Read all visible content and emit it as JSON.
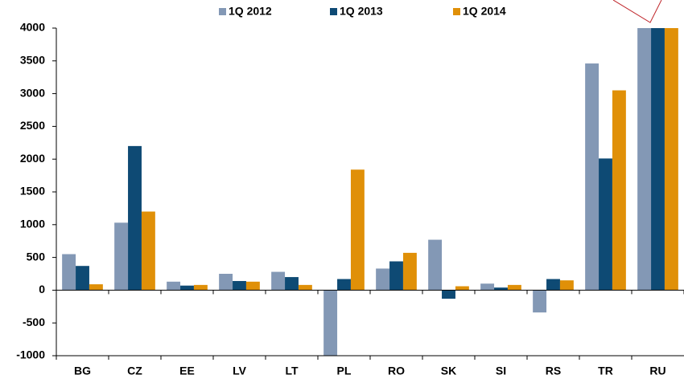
{
  "chart_data": {
    "type": "bar",
    "categories": [
      "BG",
      "CZ",
      "EE",
      "LV",
      "LT",
      "PL",
      "RO",
      "SK",
      "SI",
      "RS",
      "TR",
      "RU"
    ],
    "series": [
      {
        "name": "1Q 2012",
        "color": "#8398b5",
        "values": [
          550,
          1030,
          130,
          250,
          280,
          -1000,
          330,
          770,
          100,
          -340,
          3460,
          4000
        ]
      },
      {
        "name": "1Q 2013",
        "color": "#0e4a74",
        "values": [
          370,
          2200,
          70,
          140,
          200,
          170,
          440,
          -130,
          40,
          170,
          2010,
          4000
        ]
      },
      {
        "name": "1Q 2014",
        "color": "#e09008",
        "values": [
          90,
          1200,
          80,
          130,
          80,
          1840,
          570,
          60,
          80,
          150,
          3050,
          4000
        ]
      }
    ],
    "ylim": [
      -1000,
      4000
    ],
    "yticks": [
      -1000,
      -500,
      0,
      500,
      1000,
      1500,
      2000,
      2500,
      3000,
      3500,
      4000
    ],
    "grid": false
  }
}
